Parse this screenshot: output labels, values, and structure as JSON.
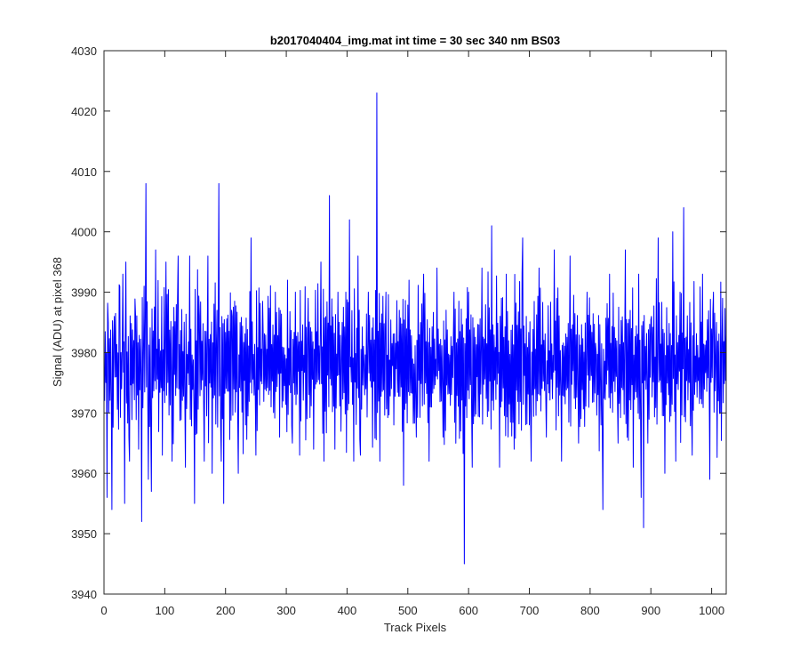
{
  "chart_data": {
    "type": "line",
    "title": "b2017040404_img.mat int time = 30 sec  340 nm BS03",
    "xlabel": "Track Pixels",
    "ylabel": "Signal (ADU) at pixel 368",
    "xlim": [
      0,
      1024
    ],
    "ylim": [
      3940,
      4030
    ],
    "x_ticks": [
      "0",
      "100",
      "200",
      "300",
      "400",
      "500",
      "600",
      "700",
      "800",
      "900",
      "1000"
    ],
    "y_ticks": [
      "3940",
      "3950",
      "3960",
      "3970",
      "3980",
      "3990",
      "4000",
      "4010",
      "4020",
      "4030"
    ],
    "grid": false,
    "legend": "none",
    "series": [
      {
        "color": "#0000ff",
        "x_start": 1,
        "x_step": 1,
        "summary": {
          "mean": 3978,
          "spread": "about 3962 to 3995",
          "max": 4023,
          "max_x": 449,
          "min": 3945,
          "min_x": 593
        },
        "highlights": [
          [
            1,
            3972
          ],
          [
            5,
            3956
          ],
          [
            7,
            3985
          ],
          [
            13,
            3954
          ],
          [
            17,
            3986
          ],
          [
            26,
            3991
          ],
          [
            31,
            3993
          ],
          [
            34,
            3955
          ],
          [
            36,
            3995
          ],
          [
            42,
            3962
          ],
          [
            52,
            3986
          ],
          [
            57,
            3964
          ],
          [
            62,
            3952
          ],
          [
            66,
            3991
          ],
          [
            69,
            4008
          ],
          [
            73,
            3959
          ],
          [
            78,
            3957
          ],
          [
            85,
            3997
          ],
          [
            96,
            3963
          ],
          [
            102,
            3995
          ],
          [
            112,
            3962
          ],
          [
            122,
            3996
          ],
          [
            134,
            3961
          ],
          [
            141,
            3996
          ],
          [
            149,
            3955
          ],
          [
            157,
            3986
          ],
          [
            165,
            3962
          ],
          [
            171,
            3996
          ],
          [
            178,
            3960
          ],
          [
            186,
            3987
          ],
          [
            189,
            4008
          ],
          [
            193,
            3962
          ],
          [
            197,
            3955
          ],
          [
            211,
            3986
          ],
          [
            221,
            3960
          ],
          [
            233,
            3968
          ],
          [
            242,
            3999
          ],
          [
            250,
            3963
          ],
          [
            262,
            3983
          ],
          [
            275,
            3971
          ],
          [
            282,
            3990
          ],
          [
            289,
            3966
          ],
          [
            302,
            3992
          ],
          [
            310,
            3965
          ],
          [
            315,
            3990
          ],
          [
            322,
            3963
          ],
          [
            336,
            3989
          ],
          [
            345,
            3964
          ],
          [
            357,
            3995
          ],
          [
            362,
            3962
          ],
          [
            371,
            4006
          ],
          [
            380,
            3964
          ],
          [
            392,
            3985
          ],
          [
            398,
            3990
          ],
          [
            404,
            4002
          ],
          [
            411,
            3962
          ],
          [
            418,
            3996
          ],
          [
            422,
            3963
          ],
          [
            435,
            3990
          ],
          [
            449,
            4023
          ],
          [
            454,
            3962
          ],
          [
            464,
            3990
          ],
          [
            477,
            3968
          ],
          [
            486,
            3987
          ],
          [
            493,
            3958
          ],
          [
            502,
            3992
          ],
          [
            514,
            3966
          ],
          [
            526,
            3993
          ],
          [
            535,
            3962
          ],
          [
            548,
            3994
          ],
          [
            558,
            3966
          ],
          [
            576,
            3990
          ],
          [
            587,
            3967
          ],
          [
            593,
            3945
          ],
          [
            600,
            3990
          ],
          [
            606,
            3961
          ],
          [
            614,
            3976
          ],
          [
            622,
            3994
          ],
          [
            638,
            4001
          ],
          [
            651,
            3961
          ],
          [
            662,
            3993
          ],
          [
            675,
            3964
          ],
          [
            689,
            3999
          ],
          [
            703,
            3962
          ],
          [
            716,
            3994
          ],
          [
            728,
            3966
          ],
          [
            741,
            3997
          ],
          [
            753,
            3962
          ],
          [
            767,
            3996
          ],
          [
            781,
            3965
          ],
          [
            795,
            3990
          ],
          [
            810,
            3980
          ],
          [
            818,
            3968
          ],
          [
            821,
            3954
          ],
          [
            832,
            3993
          ],
          [
            846,
            3965
          ],
          [
            858,
            3997
          ],
          [
            871,
            3961
          ],
          [
            880,
            3993
          ],
          [
            884,
            3956
          ],
          [
            888,
            3951
          ],
          [
            895,
            3965
          ],
          [
            901,
            3986
          ],
          [
            912,
            3999
          ],
          [
            923,
            3960
          ],
          [
            936,
            4000
          ],
          [
            941,
            3962
          ],
          [
            954,
            4004
          ],
          [
            968,
            3963
          ],
          [
            985,
            3993
          ],
          [
            997,
            3959
          ],
          [
            1003,
            3990
          ],
          [
            1008,
            3985
          ],
          [
            1014,
            3970
          ],
          [
            1018,
            3989
          ],
          [
            1024,
            3983
          ]
        ]
      }
    ]
  }
}
